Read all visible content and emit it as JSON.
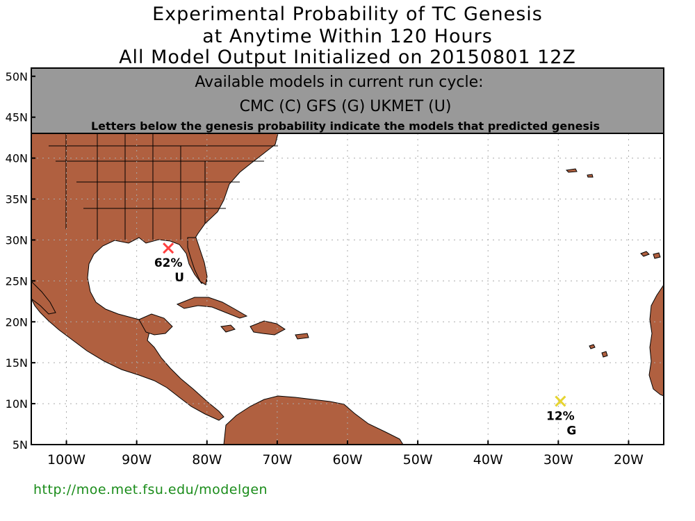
{
  "title": {
    "line1": "Experimental Probability of TC Genesis",
    "line2": "at Anytime Within 120 Hours",
    "line3": "All Model Output Initialized on 20150801 12Z"
  },
  "info_box": {
    "line1": "Available models in current run cycle:",
    "line2": "CMC (C) GFS (G)  UKMET (U)",
    "line3": "Letters below the genesis probability indicate the models that predicted genesis"
  },
  "axes": {
    "lat_labels": [
      "50N",
      "45N",
      "40N",
      "35N",
      "30N",
      "25N",
      "20N",
      "15N",
      "10N",
      "5N"
    ],
    "lon_labels": [
      "100W",
      "90W",
      "80W",
      "70W",
      "60W",
      "50W",
      "40W",
      "30W",
      "20W"
    ]
  },
  "genesis_points": [
    {
      "lat": 29.0,
      "lon": -85.5,
      "prob": "62%",
      "models": "U",
      "color": "#ff4040"
    },
    {
      "lat": 10.3,
      "lon": -29.7,
      "prob": "12%",
      "models": "G",
      "color": "#e6d430"
    }
  ],
  "colors": {
    "land": "#b06040",
    "ocean": "#ffffff",
    "box": "#999999",
    "link": "#1a8c1a"
  },
  "footer": {
    "url": "http://moe.met.fsu.edu/modelgen"
  }
}
